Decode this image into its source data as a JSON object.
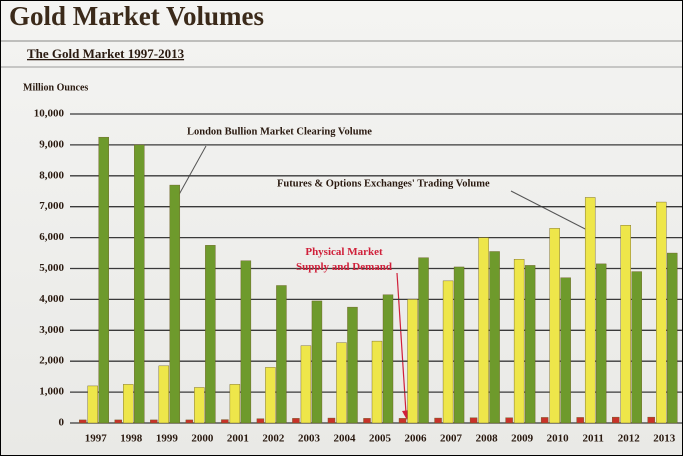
{
  "chart_data": {
    "type": "bar",
    "title": "Gold Market Volumes",
    "subtitle": "The Gold Market 1997-2013",
    "y_label": "Million Ounces",
    "categories": [
      "1997",
      "1998",
      "1999",
      "2000",
      "2001",
      "2002",
      "2003",
      "2004",
      "2005",
      "2006",
      "2007",
      "2008",
      "2009",
      "2010",
      "2011",
      "2012",
      "2013"
    ],
    "series": [
      {
        "name": "Physical Market Supply and Demand",
        "color": "#c8322a",
        "values": [
          100,
          100,
          100,
          100,
          110,
          140,
          150,
          160,
          150,
          150,
          160,
          170,
          170,
          180,
          180,
          190,
          190
        ]
      },
      {
        "name": "Futures & Options Exchanges' Trading Volume",
        "color": "#eee64a",
        "values": [
          1200,
          1250,
          1850,
          1150,
          1250,
          1800,
          2500,
          2600,
          2650,
          4000,
          4600,
          6000,
          5300,
          6300,
          7300,
          6400,
          7150
        ]
      },
      {
        "name": "London Bullion Market Clearing Volume",
        "color": "#6e9a2c",
        "values": [
          9250,
          9000,
          7700,
          5750,
          5250,
          4450,
          3950,
          3750,
          4150,
          5350,
          5050,
          5550,
          5100,
          4700,
          5150,
          4900,
          5500
        ]
      }
    ],
    "ylim": [
      0,
      10000
    ],
    "yticks": [
      0,
      {
        "value": 1000,
        "label": "1,000"
      },
      {
        "value": 2000,
        "label": "2,000"
      },
      {
        "value": 3000,
        "label": "3,000"
      },
      {
        "value": 4000,
        "label": "4,000"
      },
      {
        "value": 5000,
        "label": "5,000"
      },
      {
        "value": 6000,
        "label": "6,000"
      },
      {
        "value": 7000,
        "label": "7,000"
      },
      {
        "value": 8000,
        "label": "8,000"
      },
      {
        "value": 9000,
        "label": "9,000"
      },
      {
        "value": 10000,
        "label": "10,000"
      }
    ],
    "grid": true
  }
}
